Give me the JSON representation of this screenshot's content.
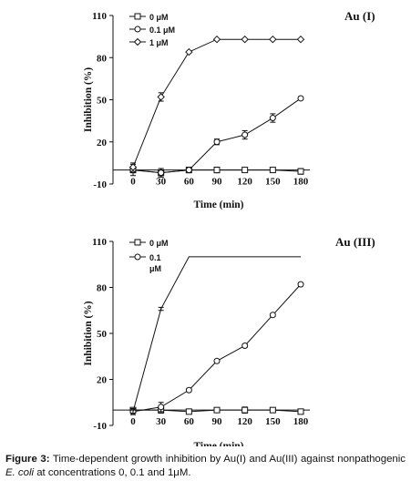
{
  "chart_data": [
    {
      "type": "line",
      "title": "Au (I)",
      "xlabel": "Time (min)",
      "ylabel": "Inhibition (%)",
      "x": [
        0,
        30,
        60,
        90,
        120,
        150,
        180
      ],
      "x_ticks": [
        "0",
        "30",
        "60",
        "90",
        "120",
        "150",
        "180"
      ],
      "y_ticks": [
        "-10",
        "20",
        "50",
        "80",
        "110"
      ],
      "ylim": [
        -10,
        110
      ],
      "legend_position": "top-left",
      "grid": false,
      "series": [
        {
          "name": "0 μM",
          "marker": "square",
          "values": [
            0,
            -2,
            0,
            0,
            0,
            0,
            -1
          ],
          "errors": [
            2,
            3,
            2,
            2,
            1,
            1,
            2
          ]
        },
        {
          "name": "0.1 μM",
          "marker": "circle",
          "values": [
            0,
            -2,
            0,
            20,
            25,
            37,
            51
          ],
          "errors": [
            4,
            3,
            1,
            2,
            3,
            3,
            1
          ]
        },
        {
          "name": "1 μM",
          "marker": "diamond",
          "values": [
            2,
            52,
            84,
            93,
            93,
            93,
            93
          ],
          "errors": [
            3,
            3,
            0,
            0,
            0,
            0,
            0
          ]
        }
      ]
    },
    {
      "type": "line",
      "title": "Au (III)",
      "xlabel": "Time (min)",
      "ylabel": "Inhibition (%)",
      "x": [
        0,
        30,
        60,
        90,
        120,
        150,
        180
      ],
      "x_ticks": [
        "0",
        "30",
        "60",
        "90",
        "120",
        "150",
        "180"
      ],
      "y_ticks": [
        "-10",
        "20",
        "50",
        "80",
        "110"
      ],
      "ylim": [
        -10,
        110
      ],
      "legend_position": "top-left",
      "grid": false,
      "series": [
        {
          "name": "0 μM",
          "marker": "square",
          "values": [
            0,
            0,
            -1,
            0,
            0,
            0,
            -1
          ],
          "errors": [
            1,
            2,
            1,
            1,
            2,
            1,
            1
          ]
        },
        {
          "name": "0.1\nμM",
          "marker": "circle",
          "values": [
            -1,
            2,
            13,
            32,
            42,
            62,
            82
          ],
          "errors": [
            2,
            3,
            1,
            1,
            1,
            1,
            1
          ]
        },
        {
          "name": "",
          "marker": "none",
          "values": [
            -1,
            66,
            100,
            100,
            100,
            100,
            100
          ],
          "errors": [
            1,
            1,
            0,
            0,
            0,
            0,
            0
          ]
        }
      ]
    }
  ],
  "caption": {
    "label": "Figure 3:",
    "text_before": " Time-dependent growth inhibition by Au(I) and Au(III) against nonpathogenic ",
    "italic": "E. coli",
    "text_after": " at concentrations 0, 0.1 and 1μM."
  }
}
